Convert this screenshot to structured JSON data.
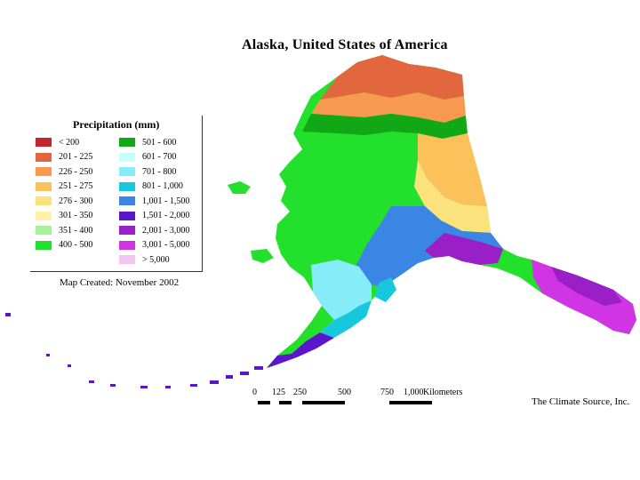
{
  "title": "Alaska, United States of America",
  "legend": {
    "title": "Precipitation (mm)",
    "left": [
      {
        "label": "< 200",
        "color": "#c3262b"
      },
      {
        "label": "201 - 225",
        "color": "#e2663e"
      },
      {
        "label": "226 - 250",
        "color": "#f79a50"
      },
      {
        "label": "251 - 275",
        "color": "#fbc15a"
      },
      {
        "label": "276 - 300",
        "color": "#fbe27c"
      },
      {
        "label": "301 - 350",
        "color": "#fff2a8"
      },
      {
        "label": "351 - 400",
        "color": "#a8f29a"
      },
      {
        "label": "400 - 500",
        "color": "#22e02b"
      }
    ],
    "right": [
      {
        "label": "501 - 600",
        "color": "#11a717"
      },
      {
        "label": "601 - 700",
        "color": "#c6ffff"
      },
      {
        "label": "701 - 800",
        "color": "#86ecf7"
      },
      {
        "label": "801 - 1,000",
        "color": "#17c7de"
      },
      {
        "label": "1,001 - 1,500",
        "color": "#3b86e4"
      },
      {
        "label": "1,501 - 2,000",
        "color": "#5a16c8"
      },
      {
        "label": "2,001 - 3,000",
        "color": "#9a1fc6"
      },
      {
        "label": "3,001 - 5,000",
        "color": "#cf35e2"
      },
      {
        "label": "> 5,000",
        "color": "#f3c4f1"
      }
    ]
  },
  "created": "Map Created: November 2002",
  "scale": {
    "ticks": [
      "0",
      "125",
      "250",
      "500",
      "750",
      "1,000"
    ],
    "units": "Kilometers"
  },
  "source": "The Climate Source, Inc."
}
